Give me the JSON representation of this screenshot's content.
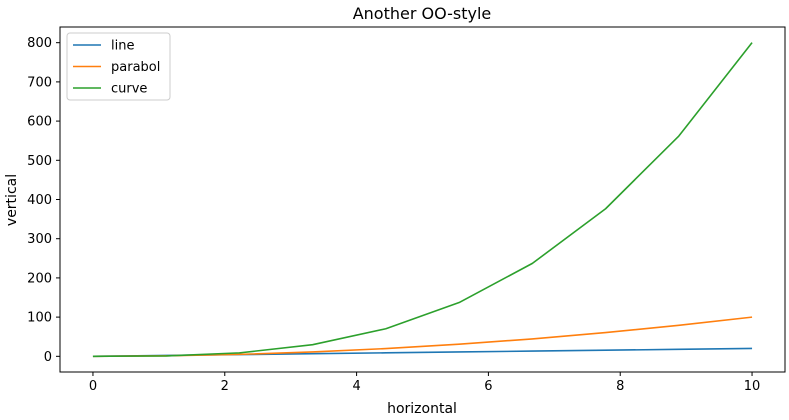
{
  "chart_data": {
    "type": "line",
    "title": "Another OO-style",
    "xlabel": "horizontal",
    "ylabel": "vertical",
    "xlim": [
      -0.5,
      10.5
    ],
    "ylim": [
      -40,
      840
    ],
    "xticks": [
      0,
      2,
      4,
      6,
      8,
      10
    ],
    "yticks": [
      0,
      100,
      200,
      300,
      400,
      500,
      600,
      700,
      800
    ],
    "grid": false,
    "legend_position": "top-left",
    "x": [
      0,
      1.111,
      2.222,
      3.333,
      4.444,
      5.556,
      6.667,
      7.778,
      8.889,
      10
    ],
    "series": [
      {
        "name": "line",
        "color": "#1f77b4",
        "values": [
          0,
          2.222,
          4.444,
          6.667,
          8.889,
          11.111,
          13.333,
          15.556,
          17.778,
          20
        ]
      },
      {
        "name": "parabol",
        "color": "#ff7f0e",
        "values": [
          0,
          1.235,
          4.938,
          11.111,
          19.753,
          30.864,
          44.444,
          60.494,
          79.012,
          100
        ]
      },
      {
        "name": "curve",
        "color": "#2ca02c",
        "values": [
          0,
          1.097,
          8.779,
          29.63,
          70.233,
          137.174,
          237.037,
          376.406,
          561.866,
          800
        ]
      }
    ]
  }
}
